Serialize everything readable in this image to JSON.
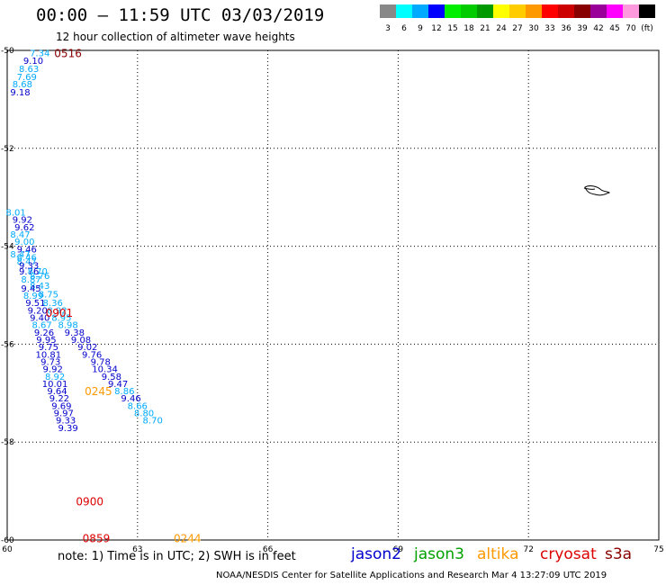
{
  "title": "00:00 – 11:59 UTC 03/03/2019",
  "subtitle": "12 hour collection of altimeter wave heights",
  "note": "note:  1) Time is in UTC;  2) SWH is in feet",
  "credit": "NOAA/NESDIS Center for Satellite Applications and Research     Mar  4 13:27:09 UTC 2019",
  "satellites": [
    {
      "name": "jason2",
      "color": "#0000cc"
    },
    {
      "name": "jason3",
      "color": "#00a000"
    },
    {
      "name": "altika",
      "color": "#ff9900"
    },
    {
      "name": "cryosat",
      "color": "#dd0000"
    },
    {
      "name": "s3a",
      "color": "#880000"
    }
  ],
  "legend": {
    "colors": [
      "#888888",
      "#00ffff",
      "#00aaff",
      "#0000ff",
      "#00ee00",
      "#00cc00",
      "#009900",
      "#ffff00",
      "#ffcc00",
      "#ff9900",
      "#ff0000",
      "#cc0000",
      "#880000",
      "#990099",
      "#ff00ff",
      "#ff99dd",
      "#000000"
    ],
    "labels": [
      "3",
      "6",
      "9",
      "12",
      "15",
      "18",
      "21",
      "24",
      "27",
      "30",
      "33",
      "36",
      "39",
      "42",
      "45",
      "70",
      "(ft)"
    ]
  },
  "map": {
    "lon_ticks": [
      "60",
      "63",
      "66",
      "69",
      "72",
      "75"
    ],
    "lat_ticks": [
      "-50",
      "-52",
      "-54",
      "-56",
      "-58",
      "-60"
    ]
  },
  "times": [
    {
      "text": "0516",
      "color": "#880000",
      "lon": 61.4,
      "lat": -50.05
    },
    {
      "text": "0901",
      "color": "#dd0000",
      "lon": 61.2,
      "lat": -55.35
    },
    {
      "text": "0245",
      "color": "#ff9900",
      "lon": 62.1,
      "lat": -56.95
    },
    {
      "text": "0900",
      "color": "#dd0000",
      "lon": 61.9,
      "lat": -59.2
    },
    {
      "text": "0859",
      "color": "#dd0000",
      "lon": 62.05,
      "lat": -59.95
    },
    {
      "text": "0244",
      "color": "#ff9900",
      "lon": 64.15,
      "lat": -59.95
    }
  ],
  "readings": [
    {
      "v": "7.34",
      "c": "#00aaff",
      "lon": 60.75,
      "lat": -50.05
    },
    {
      "v": "9.10",
      "c": "#0000cc",
      "lon": 60.6,
      "lat": -50.2
    },
    {
      "v": "8.63",
      "c": "#00aaff",
      "lon": 60.5,
      "lat": -50.37
    },
    {
      "v": "7.69",
      "c": "#00aaff",
      "lon": 60.45,
      "lat": -50.53
    },
    {
      "v": "8.68",
      "c": "#00aaff",
      "lon": 60.35,
      "lat": -50.68
    },
    {
      "v": "9.18",
      "c": "#0000cc",
      "lon": 60.3,
      "lat": -50.85
    },
    {
      "v": "8.01",
      "c": "#00aaff",
      "lon": 60.2,
      "lat": -53.3
    },
    {
      "v": "9.92",
      "c": "#0000cc",
      "lon": 60.35,
      "lat": -53.45
    },
    {
      "v": "9.62",
      "c": "#0000cc",
      "lon": 60.4,
      "lat": -53.6
    },
    {
      "v": "8.47",
      "c": "#00aaff",
      "lon": 60.3,
      "lat": -53.75
    },
    {
      "v": "9.00",
      "c": "#00aaff",
      "lon": 60.4,
      "lat": -53.9
    },
    {
      "v": "9.46",
      "c": "#0000cc",
      "lon": 60.45,
      "lat": -54.05
    },
    {
      "v": "8.47",
      "c": "#00aaff",
      "lon": 60.3,
      "lat": -54.15
    },
    {
      "v": "8.46",
      "c": "#00aaff",
      "lon": 60.45,
      "lat": -54.22
    },
    {
      "v": "8.47",
      "c": "#00aaff",
      "lon": 60.45,
      "lat": -54.3
    },
    {
      "v": "9.33",
      "c": "#0000cc",
      "lon": 60.5,
      "lat": -54.38
    },
    {
      "v": "9.76",
      "c": "#0000cc",
      "lon": 60.5,
      "lat": -54.5
    },
    {
      "v": "8.70",
      "c": "#00aaff",
      "lon": 60.7,
      "lat": -54.5
    },
    {
      "v": "8.76",
      "c": "#00aaff",
      "lon": 60.75,
      "lat": -54.6
    },
    {
      "v": "8.87",
      "c": "#00aaff",
      "lon": 60.55,
      "lat": -54.67
    },
    {
      "v": "8.43",
      "c": "#00aaff",
      "lon": 60.75,
      "lat": -54.8
    },
    {
      "v": "9.45",
      "c": "#0000cc",
      "lon": 60.55,
      "lat": -54.85
    },
    {
      "v": "8.75",
      "c": "#00aaff",
      "lon": 60.95,
      "lat": -54.97
    },
    {
      "v": "8.99",
      "c": "#00aaff",
      "lon": 60.6,
      "lat": -55.0
    },
    {
      "v": "9.51",
      "c": "#0000cc",
      "lon": 60.65,
      "lat": -55.15
    },
    {
      "v": "8.36",
      "c": "#00aaff",
      "lon": 61.05,
      "lat": -55.15
    },
    {
      "v": "9.20",
      "c": "#0000cc",
      "lon": 60.7,
      "lat": -55.3
    },
    {
      "v": "8.92",
      "c": "#00aaff",
      "lon": 61.15,
      "lat": -55.3
    },
    {
      "v": "9.40",
      "c": "#0000cc",
      "lon": 60.75,
      "lat": -55.45
    },
    {
      "v": "8.95",
      "c": "#00aaff",
      "lon": 61.25,
      "lat": -55.45
    },
    {
      "v": "8.67",
      "c": "#00aaff",
      "lon": 60.8,
      "lat": -55.6
    },
    {
      "v": "8.98",
      "c": "#00aaff",
      "lon": 61.4,
      "lat": -55.6
    },
    {
      "v": "9.26",
      "c": "#0000cc",
      "lon": 60.85,
      "lat": -55.75
    },
    {
      "v": "9.38",
      "c": "#0000cc",
      "lon": 61.55,
      "lat": -55.75
    },
    {
      "v": "9.95",
      "c": "#0000cc",
      "lon": 60.9,
      "lat": -55.9
    },
    {
      "v": "9.08",
      "c": "#0000cc",
      "lon": 61.7,
      "lat": -55.9
    },
    {
      "v": "9.75",
      "c": "#0000cc",
      "lon": 60.95,
      "lat": -56.05
    },
    {
      "v": "9.02",
      "c": "#0000cc",
      "lon": 61.85,
      "lat": -56.05
    },
    {
      "v": "10.81",
      "c": "#0000cc",
      "lon": 60.95,
      "lat": -56.2
    },
    {
      "v": "9.76",
      "c": "#0000cc",
      "lon": 61.95,
      "lat": -56.2
    },
    {
      "v": "9.73",
      "c": "#0000cc",
      "lon": 61.0,
      "lat": -56.35
    },
    {
      "v": "9.78",
      "c": "#0000cc",
      "lon": 62.15,
      "lat": -56.35
    },
    {
      "v": "9.92",
      "c": "#0000cc",
      "lon": 61.05,
      "lat": -56.5
    },
    {
      "v": "10.34",
      "c": "#0000cc",
      "lon": 62.25,
      "lat": -56.5
    },
    {
      "v": "8.92",
      "c": "#00aaff",
      "lon": 61.1,
      "lat": -56.65
    },
    {
      "v": "9.58",
      "c": "#0000cc",
      "lon": 62.4,
      "lat": -56.65
    },
    {
      "v": "10.01",
      "c": "#0000cc",
      "lon": 61.1,
      "lat": -56.8
    },
    {
      "v": "9.47",
      "c": "#0000cc",
      "lon": 62.55,
      "lat": -56.8
    },
    {
      "v": "9.64",
      "c": "#0000cc",
      "lon": 61.15,
      "lat": -56.95
    },
    {
      "v": "8.86",
      "c": "#00aaff",
      "lon": 62.7,
      "lat": -56.95
    },
    {
      "v": "9.22",
      "c": "#0000cc",
      "lon": 61.2,
      "lat": -57.1
    },
    {
      "v": "9.46",
      "c": "#0000cc",
      "lon": 62.85,
      "lat": -57.1
    },
    {
      "v": "9.69",
      "c": "#0000cc",
      "lon": 61.25,
      "lat": -57.25
    },
    {
      "v": "8.66",
      "c": "#00aaff",
      "lon": 63.0,
      "lat": -57.25
    },
    {
      "v": "9.97",
      "c": "#0000cc",
      "lon": 61.3,
      "lat": -57.4
    },
    {
      "v": "8.80",
      "c": "#00aaff",
      "lon": 63.15,
      "lat": -57.4
    },
    {
      "v": "9.33",
      "c": "#0000cc",
      "lon": 61.35,
      "lat": -57.55
    },
    {
      "v": "8.70",
      "c": "#00aaff",
      "lon": 63.35,
      "lat": -57.55
    },
    {
      "v": "9.39",
      "c": "#0000cc",
      "lon": 61.4,
      "lat": -57.7
    }
  ]
}
